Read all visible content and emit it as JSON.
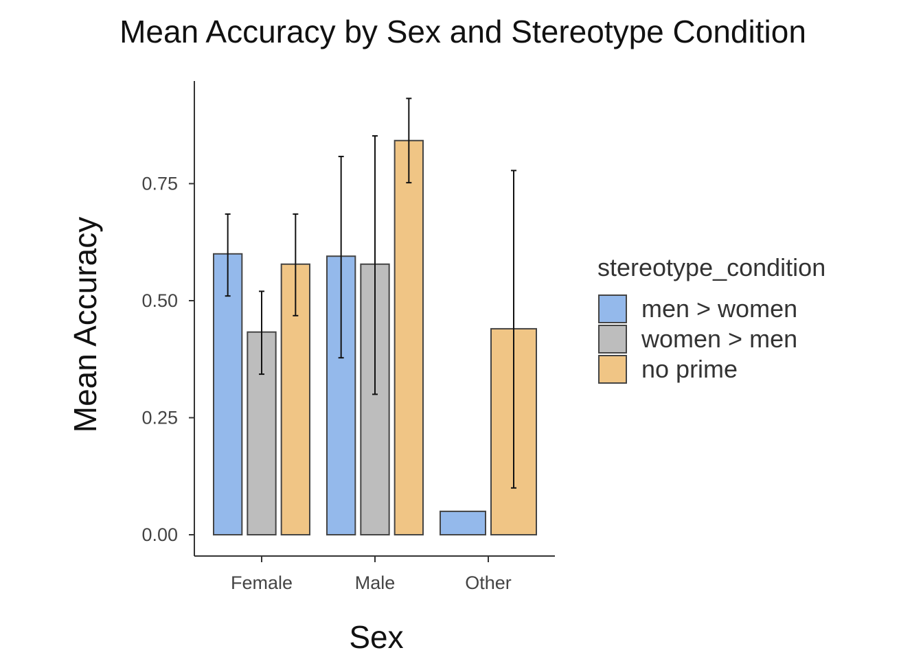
{
  "chart_data": {
    "type": "bar",
    "title": "Mean Accuracy by Sex and Stereotype Condition",
    "xlabel": "Sex",
    "ylabel": "Mean Accuracy",
    "categories": [
      "Female",
      "Male",
      "Other"
    ],
    "ylim": [
      -0.045,
      0.97
    ],
    "yticks": [
      0.0,
      0.25,
      0.5,
      0.75
    ],
    "ytick_labels": [
      "0.00",
      "0.25",
      "0.50",
      "0.75"
    ],
    "grid": false,
    "legend": {
      "title": "stereotype_condition",
      "placement": "right"
    },
    "series": [
      {
        "name": "men > women",
        "color": "#94B9EB",
        "values": [
          0.6,
          0.595,
          0.05
        ],
        "error_low": [
          0.51,
          0.378,
          null
        ],
        "error_high": [
          0.685,
          0.808,
          null
        ]
      },
      {
        "name": "women > men",
        "color": "#BDBDBD",
        "values": [
          0.433,
          0.578,
          null
        ],
        "error_low": [
          0.343,
          0.3,
          null
        ],
        "error_high": [
          0.52,
          0.852,
          null
        ]
      },
      {
        "name": "no prime",
        "color": "#F0C585",
        "values": [
          0.578,
          0.842,
          0.44
        ],
        "error_low": [
          0.468,
          0.752,
          0.1
        ],
        "error_high": [
          0.685,
          0.932,
          0.778
        ]
      }
    ]
  }
}
